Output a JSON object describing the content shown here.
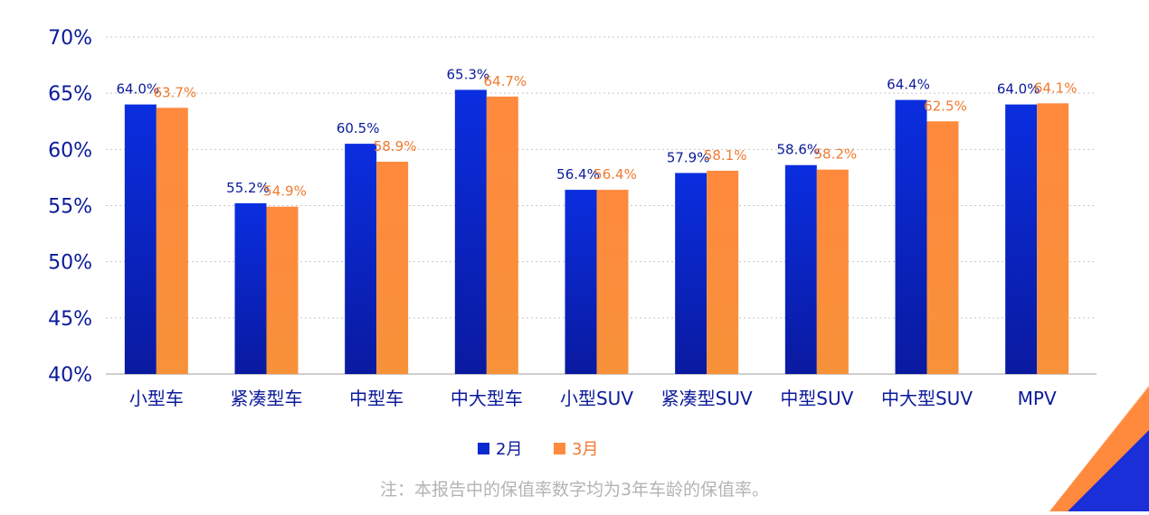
{
  "chart_data": {
    "type": "bar",
    "categories": [
      "小型车",
      "紧凑型车",
      "中型车",
      "中大型车",
      "小型SUV",
      "紧凑型SUV",
      "中型SUV",
      "中大型SUV",
      "MPV"
    ],
    "series": [
      {
        "name": "2月",
        "values": [
          64.0,
          55.2,
          60.5,
          65.3,
          56.4,
          57.9,
          58.6,
          64.4,
          64.0
        ],
        "labels": [
          "64.0%",
          "55.2%",
          "60.5%",
          "65.3%",
          "56.4%",
          "57.9%",
          "58.6%",
          "64.4%",
          "64.0%"
        ],
        "color": "#0a2ad0",
        "label_color": "#0b1a9a"
      },
      {
        "name": "3月",
        "values": [
          63.7,
          54.9,
          58.9,
          64.7,
          56.4,
          58.1,
          58.2,
          62.5,
          64.1
        ],
        "labels": [
          "63.7%",
          "54.9%",
          "58.9%",
          "64.7%",
          "56.4%",
          "58.1%",
          "58.2%",
          "62.5%",
          "64.1%"
        ],
        "color": "#ff8a3d",
        "label_color": "#f07a30"
      }
    ],
    "ylim": [
      40,
      70
    ],
    "yticks": [
      "40%",
      "45%",
      "50%",
      "55%",
      "60%",
      "65%",
      "70%"
    ],
    "ytick_values": [
      40,
      45,
      50,
      55,
      60,
      65,
      70
    ],
    "grid": true,
    "legend_position": "bottom-center",
    "axis_text_color": "#0b1a9a"
  },
  "note": "注：本报告中的保值率数字均为3年车龄的保值率。"
}
